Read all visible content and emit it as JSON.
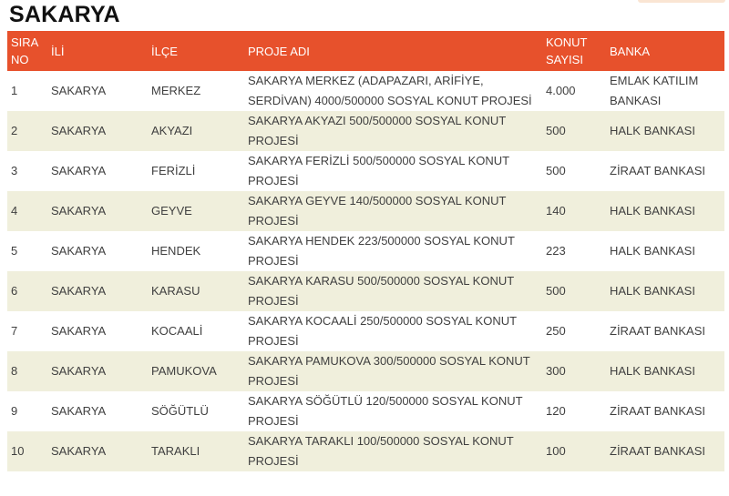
{
  "page": {
    "title": "SAKARYA"
  },
  "colors": {
    "header_bg": "#E7512C",
    "header_text": "#FFFFFF",
    "row_odd_bg": "#FFFFFF",
    "row_even_bg": "#F0EFDC",
    "body_text": "#3F3F3F",
    "title_text": "#111111",
    "top_accent": "#FAE5D3"
  },
  "table": {
    "columns": [
      {
        "key": "sira",
        "label": "SIRA NO"
      },
      {
        "key": "il",
        "label": "İLİ"
      },
      {
        "key": "ilce",
        "label": "İLÇE"
      },
      {
        "key": "proje",
        "label": "PROJE ADI"
      },
      {
        "key": "konut",
        "label": "KONUT SAYISI"
      },
      {
        "key": "banka",
        "label": "BANKA"
      }
    ],
    "rows": [
      {
        "sira": "1",
        "il": "SAKARYA",
        "ilce": "MERKEZ",
        "proje": "SAKARYA MERKEZ (ADAPAZARI, ARİFİYE, SERDİVAN) 4000/500000 SOSYAL KONUT PROJESİ",
        "konut": "4.000",
        "banka": "EMLAK KATILIM BANKASI"
      },
      {
        "sira": "2",
        "il": "SAKARYA",
        "ilce": "AKYAZI",
        "proje": "SAKARYA AKYAZI 500/500000 SOSYAL KONUT PROJESİ",
        "konut": "500",
        "banka": "HALK BANKASI"
      },
      {
        "sira": "3",
        "il": "SAKARYA",
        "ilce": "FERİZLİ",
        "proje": "SAKARYA FERİZLİ 500/500000 SOSYAL KONUT PROJESİ",
        "konut": "500",
        "banka": "ZİRAAT BANKASI"
      },
      {
        "sira": "4",
        "il": "SAKARYA",
        "ilce": "GEYVE",
        "proje": "SAKARYA GEYVE 140/500000 SOSYAL KONUT PROJESİ",
        "konut": "140",
        "banka": "HALK BANKASI"
      },
      {
        "sira": "5",
        "il": "SAKARYA",
        "ilce": "HENDEK",
        "proje": "SAKARYA HENDEK 223/500000 SOSYAL KONUT PROJESİ",
        "konut": "223",
        "banka": "HALK BANKASI"
      },
      {
        "sira": "6",
        "il": "SAKARYA",
        "ilce": "KARASU",
        "proje": "SAKARYA KARASU 500/500000 SOSYAL KONUT PROJESİ",
        "konut": "500",
        "banka": "HALK BANKASI"
      },
      {
        "sira": "7",
        "il": "SAKARYA",
        "ilce": "KOCAALİ",
        "proje": "SAKARYA KOCAALİ 250/500000 SOSYAL KONUT PROJESİ",
        "konut": "250",
        "banka": "ZİRAAT BANKASI"
      },
      {
        "sira": "8",
        "il": "SAKARYA",
        "ilce": "PAMUKOVA",
        "proje": "SAKARYA PAMUKOVA 300/500000 SOSYAL KONUT PROJESİ",
        "konut": "300",
        "banka": "HALK BANKASI"
      },
      {
        "sira": "9",
        "il": "SAKARYA",
        "ilce": "SÖĞÜTLÜ",
        "proje": "SAKARYA SÖĞÜTLÜ 120/500000 SOSYAL KONUT PROJESİ",
        "konut": "120",
        "banka": "ZİRAAT BANKASI"
      },
      {
        "sira": "10",
        "il": "SAKARYA",
        "ilce": "TARAKLI",
        "proje": "SAKARYA TARAKLI 100/500000 SOSYAL KONUT PROJESİ",
        "konut": "100",
        "banka": "ZİRAAT BANKASI"
      }
    ]
  }
}
